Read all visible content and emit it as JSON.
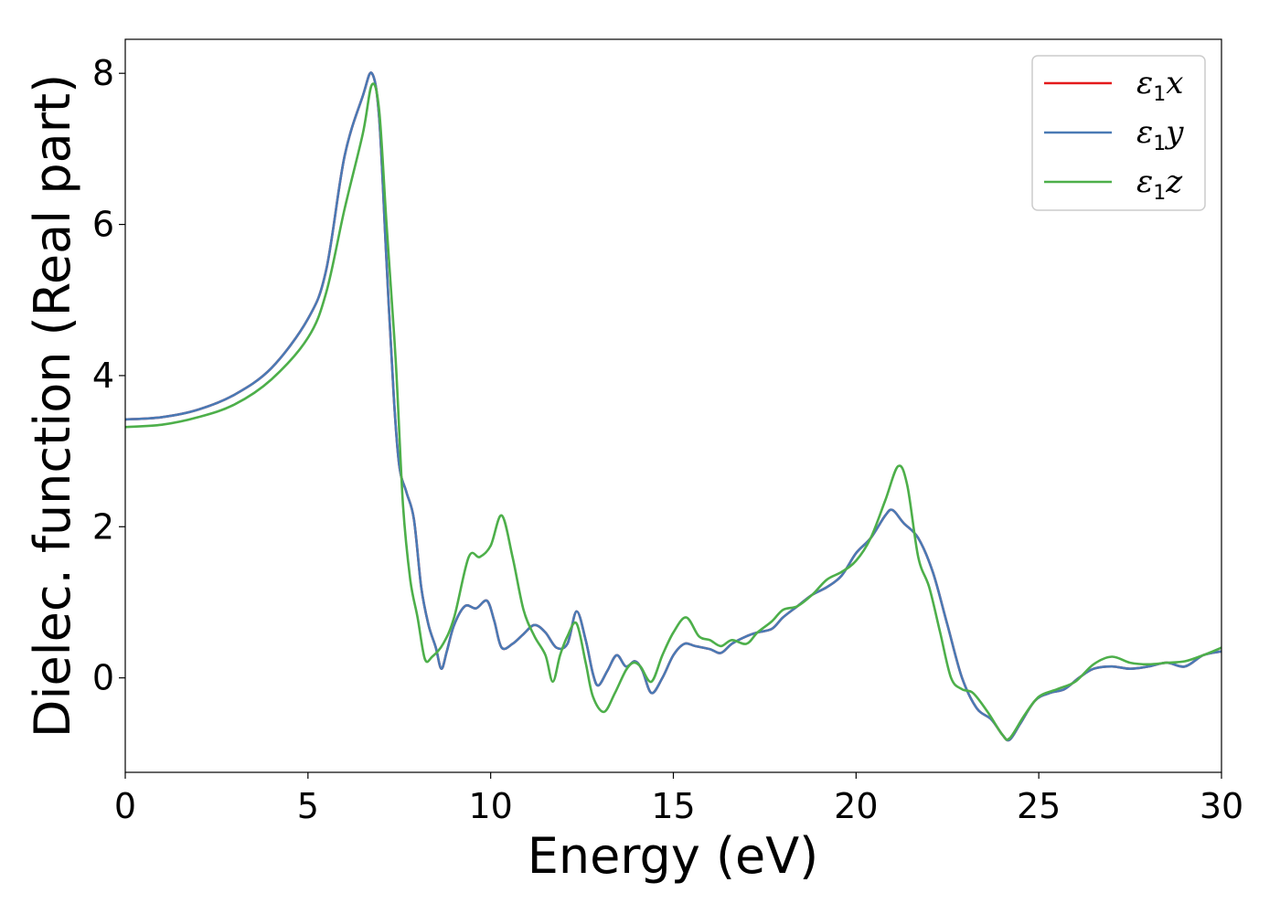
{
  "chart_data": {
    "type": "line",
    "xlabel": "Energy (eV)",
    "ylabel": "Dielec. function (Real part)",
    "xlim": [
      0,
      30
    ],
    "ylim": [
      -1.25,
      8.45
    ],
    "xticks": [
      0,
      5,
      10,
      15,
      20,
      25,
      30
    ],
    "yticks": [
      0,
      2,
      4,
      6,
      8
    ],
    "grid": false,
    "legend": "top-right",
    "series": [
      {
        "name": "ε1x",
        "legend_base": "ε",
        "legend_sub": "1",
        "legend_suffix": "x",
        "color": "#e41a1c",
        "points": [
          [
            0,
            3.42
          ],
          [
            1,
            3.45
          ],
          [
            2,
            3.55
          ],
          [
            3,
            3.75
          ],
          [
            4,
            4.1
          ],
          [
            5,
            4.75
          ],
          [
            5.5,
            5.4
          ],
          [
            6,
            6.9
          ],
          [
            6.5,
            7.7
          ],
          [
            6.75,
            8.0
          ],
          [
            6.95,
            7.4
          ],
          [
            7.15,
            5.5
          ],
          [
            7.35,
            3.7
          ],
          [
            7.5,
            2.8
          ],
          [
            7.7,
            2.45
          ],
          [
            7.9,
            2.1
          ],
          [
            8.1,
            1.2
          ],
          [
            8.3,
            0.7
          ],
          [
            8.5,
            0.4
          ],
          [
            8.65,
            0.12
          ],
          [
            8.8,
            0.35
          ],
          [
            9.0,
            0.7
          ],
          [
            9.3,
            0.95
          ],
          [
            9.6,
            0.92
          ],
          [
            9.9,
            1.02
          ],
          [
            10.1,
            0.75
          ],
          [
            10.3,
            0.4
          ],
          [
            10.6,
            0.45
          ],
          [
            10.9,
            0.58
          ],
          [
            11.2,
            0.7
          ],
          [
            11.5,
            0.6
          ],
          [
            11.8,
            0.4
          ],
          [
            12.1,
            0.45
          ],
          [
            12.35,
            0.88
          ],
          [
            12.6,
            0.5
          ],
          [
            12.8,
            0.05
          ],
          [
            12.95,
            -0.1
          ],
          [
            13.2,
            0.1
          ],
          [
            13.45,
            0.3
          ],
          [
            13.7,
            0.15
          ],
          [
            13.95,
            0.22
          ],
          [
            14.15,
            0.1
          ],
          [
            14.4,
            -0.2
          ],
          [
            14.7,
            0.0
          ],
          [
            15.0,
            0.3
          ],
          [
            15.3,
            0.45
          ],
          [
            15.6,
            0.42
          ],
          [
            16.0,
            0.38
          ],
          [
            16.3,
            0.33
          ],
          [
            16.6,
            0.45
          ],
          [
            17.0,
            0.55
          ],
          [
            17.3,
            0.6
          ],
          [
            17.7,
            0.65
          ],
          [
            18.0,
            0.8
          ],
          [
            18.4,
            0.95
          ],
          [
            18.8,
            1.1
          ],
          [
            19.2,
            1.2
          ],
          [
            19.6,
            1.35
          ],
          [
            20.0,
            1.65
          ],
          [
            20.4,
            1.85
          ],
          [
            20.8,
            2.15
          ],
          [
            21.0,
            2.22
          ],
          [
            21.3,
            2.05
          ],
          [
            21.7,
            1.85
          ],
          [
            22.1,
            1.4
          ],
          [
            22.5,
            0.7
          ],
          [
            22.9,
            0.0
          ],
          [
            23.3,
            -0.4
          ],
          [
            23.7,
            -0.55
          ],
          [
            24.0,
            -0.75
          ],
          [
            24.2,
            -0.82
          ],
          [
            24.5,
            -0.6
          ],
          [
            24.9,
            -0.3
          ],
          [
            25.3,
            -0.2
          ],
          [
            25.7,
            -0.15
          ],
          [
            26.1,
            0.0
          ],
          [
            26.5,
            0.12
          ],
          [
            27.0,
            0.15
          ],
          [
            27.5,
            0.12
          ],
          [
            28.0,
            0.15
          ],
          [
            28.5,
            0.2
          ],
          [
            29.0,
            0.15
          ],
          [
            29.5,
            0.3
          ],
          [
            30,
            0.35
          ]
        ]
      },
      {
        "name": "ε1y",
        "legend_base": "ε",
        "legend_sub": "1",
        "legend_suffix": "y",
        "color": "#4a7ab5",
        "points": [
          [
            0,
            3.42
          ],
          [
            1,
            3.45
          ],
          [
            2,
            3.55
          ],
          [
            3,
            3.75
          ],
          [
            4,
            4.1
          ],
          [
            5,
            4.75
          ],
          [
            5.5,
            5.4
          ],
          [
            6,
            6.9
          ],
          [
            6.5,
            7.7
          ],
          [
            6.75,
            8.0
          ],
          [
            6.95,
            7.4
          ],
          [
            7.15,
            5.5
          ],
          [
            7.35,
            3.7
          ],
          [
            7.5,
            2.8
          ],
          [
            7.7,
            2.45
          ],
          [
            7.9,
            2.1
          ],
          [
            8.1,
            1.2
          ],
          [
            8.3,
            0.7
          ],
          [
            8.5,
            0.4
          ],
          [
            8.65,
            0.12
          ],
          [
            8.8,
            0.35
          ],
          [
            9.0,
            0.7
          ],
          [
            9.3,
            0.95
          ],
          [
            9.6,
            0.92
          ],
          [
            9.9,
            1.02
          ],
          [
            10.1,
            0.75
          ],
          [
            10.3,
            0.4
          ],
          [
            10.6,
            0.45
          ],
          [
            10.9,
            0.58
          ],
          [
            11.2,
            0.7
          ],
          [
            11.5,
            0.6
          ],
          [
            11.8,
            0.4
          ],
          [
            12.1,
            0.45
          ],
          [
            12.35,
            0.88
          ],
          [
            12.6,
            0.5
          ],
          [
            12.8,
            0.05
          ],
          [
            12.95,
            -0.1
          ],
          [
            13.2,
            0.1
          ],
          [
            13.45,
            0.3
          ],
          [
            13.7,
            0.15
          ],
          [
            13.95,
            0.22
          ],
          [
            14.15,
            0.1
          ],
          [
            14.4,
            -0.2
          ],
          [
            14.7,
            0.0
          ],
          [
            15.0,
            0.3
          ],
          [
            15.3,
            0.45
          ],
          [
            15.6,
            0.42
          ],
          [
            16.0,
            0.38
          ],
          [
            16.3,
            0.33
          ],
          [
            16.6,
            0.45
          ],
          [
            17.0,
            0.55
          ],
          [
            17.3,
            0.6
          ],
          [
            17.7,
            0.65
          ],
          [
            18.0,
            0.8
          ],
          [
            18.4,
            0.95
          ],
          [
            18.8,
            1.1
          ],
          [
            19.2,
            1.2
          ],
          [
            19.6,
            1.35
          ],
          [
            20.0,
            1.65
          ],
          [
            20.4,
            1.85
          ],
          [
            20.8,
            2.15
          ],
          [
            21.0,
            2.22
          ],
          [
            21.3,
            2.05
          ],
          [
            21.7,
            1.85
          ],
          [
            22.1,
            1.4
          ],
          [
            22.5,
            0.7
          ],
          [
            22.9,
            0.0
          ],
          [
            23.3,
            -0.4
          ],
          [
            23.7,
            -0.55
          ],
          [
            24.0,
            -0.75
          ],
          [
            24.2,
            -0.82
          ],
          [
            24.5,
            -0.6
          ],
          [
            24.9,
            -0.3
          ],
          [
            25.3,
            -0.2
          ],
          [
            25.7,
            -0.15
          ],
          [
            26.1,
            0.0
          ],
          [
            26.5,
            0.12
          ],
          [
            27.0,
            0.15
          ],
          [
            27.5,
            0.12
          ],
          [
            28.0,
            0.15
          ],
          [
            28.5,
            0.2
          ],
          [
            29.0,
            0.15
          ],
          [
            29.5,
            0.3
          ],
          [
            30,
            0.35
          ]
        ]
      },
      {
        "name": "ε1z",
        "legend_base": "ε",
        "legend_sub": "1",
        "legend_suffix": "z",
        "color": "#4daf4a",
        "points": [
          [
            0,
            3.32
          ],
          [
            1,
            3.35
          ],
          [
            2,
            3.45
          ],
          [
            3,
            3.62
          ],
          [
            4,
            3.95
          ],
          [
            5,
            4.5
          ],
          [
            5.5,
            5.1
          ],
          [
            6,
            6.2
          ],
          [
            6.5,
            7.2
          ],
          [
            6.75,
            7.85
          ],
          [
            6.95,
            7.5
          ],
          [
            7.15,
            6.0
          ],
          [
            7.4,
            4.2
          ],
          [
            7.6,
            2.3
          ],
          [
            7.8,
            1.3
          ],
          [
            8.0,
            0.8
          ],
          [
            8.2,
            0.25
          ],
          [
            8.4,
            0.28
          ],
          [
            8.7,
            0.45
          ],
          [
            9.0,
            0.8
          ],
          [
            9.4,
            1.6
          ],
          [
            9.7,
            1.6
          ],
          [
            10.0,
            1.75
          ],
          [
            10.3,
            2.15
          ],
          [
            10.6,
            1.6
          ],
          [
            10.9,
            0.9
          ],
          [
            11.2,
            0.55
          ],
          [
            11.5,
            0.3
          ],
          [
            11.7,
            -0.05
          ],
          [
            11.9,
            0.3
          ],
          [
            12.1,
            0.55
          ],
          [
            12.35,
            0.72
          ],
          [
            12.6,
            0.2
          ],
          [
            12.8,
            -0.25
          ],
          [
            13.1,
            -0.45
          ],
          [
            13.4,
            -0.2
          ],
          [
            13.7,
            0.1
          ],
          [
            13.9,
            0.2
          ],
          [
            14.1,
            0.15
          ],
          [
            14.4,
            -0.05
          ],
          [
            14.7,
            0.3
          ],
          [
            15.0,
            0.6
          ],
          [
            15.35,
            0.8
          ],
          [
            15.7,
            0.55
          ],
          [
            16.0,
            0.5
          ],
          [
            16.3,
            0.42
          ],
          [
            16.6,
            0.5
          ],
          [
            17.0,
            0.45
          ],
          [
            17.3,
            0.6
          ],
          [
            17.7,
            0.75
          ],
          [
            18.0,
            0.9
          ],
          [
            18.4,
            0.95
          ],
          [
            18.8,
            1.1
          ],
          [
            19.2,
            1.3
          ],
          [
            19.6,
            1.4
          ],
          [
            20.0,
            1.55
          ],
          [
            20.4,
            1.85
          ],
          [
            20.8,
            2.35
          ],
          [
            21.15,
            2.8
          ],
          [
            21.4,
            2.55
          ],
          [
            21.7,
            1.6
          ],
          [
            22.0,
            1.2
          ],
          [
            22.3,
            0.6
          ],
          [
            22.6,
            0.0
          ],
          [
            22.9,
            -0.15
          ],
          [
            23.2,
            -0.2
          ],
          [
            23.6,
            -0.45
          ],
          [
            24.0,
            -0.75
          ],
          [
            24.2,
            -0.8
          ],
          [
            24.6,
            -0.5
          ],
          [
            25.0,
            -0.25
          ],
          [
            25.5,
            -0.15
          ],
          [
            26.0,
            -0.05
          ],
          [
            26.5,
            0.18
          ],
          [
            27.0,
            0.28
          ],
          [
            27.5,
            0.2
          ],
          [
            28.0,
            0.18
          ],
          [
            28.5,
            0.2
          ],
          [
            29.0,
            0.22
          ],
          [
            29.5,
            0.3
          ],
          [
            30,
            0.4
          ]
        ]
      }
    ]
  }
}
